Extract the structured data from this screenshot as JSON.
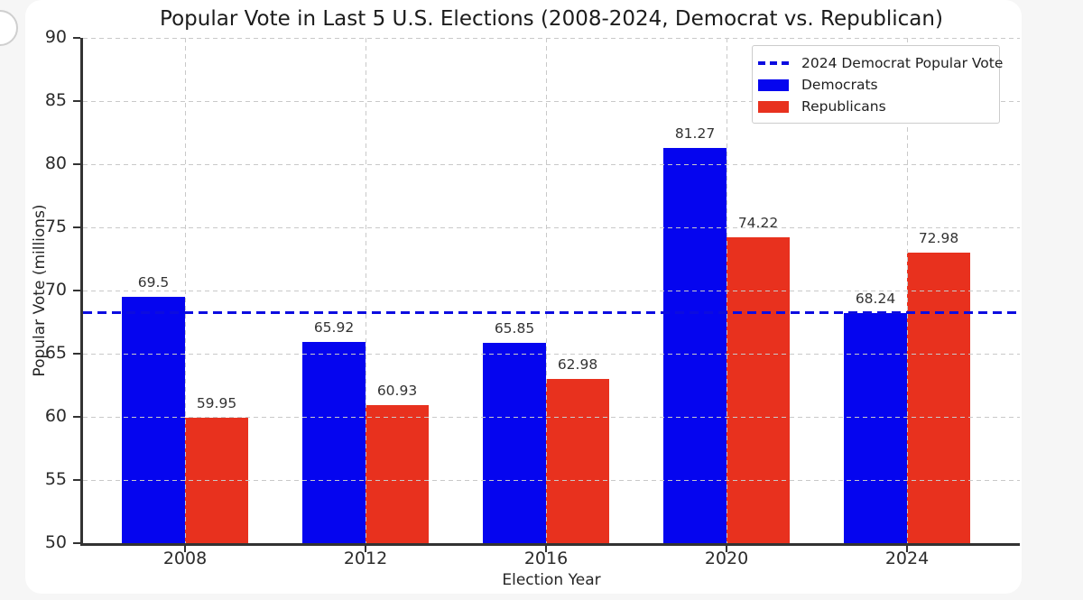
{
  "page": {
    "page_bg": "#f6f6f6",
    "card_bg": "#ffffff"
  },
  "chart_data": {
    "type": "bar",
    "title": "Popular Vote in Last 5 U.S. Elections (2008-2024, Democrat vs. Republican)",
    "xlabel": "Election Year",
    "ylabel": "Popular Vote (millions)",
    "categories": [
      "2008",
      "2012",
      "2016",
      "2020",
      "2024"
    ],
    "series": [
      {
        "name": "Democrats",
        "color": "#0505ef",
        "values": [
          69.5,
          65.92,
          65.85,
          81.27,
          68.24
        ]
      },
      {
        "name": "Republicans",
        "color": "#e8311e",
        "values": [
          59.95,
          60.93,
          62.98,
          74.22,
          72.98
        ]
      }
    ],
    "reference_line": {
      "label": "2024 Democrat Popular Vote",
      "value": 68.24,
      "color": "#0c0ce0",
      "style": "dashed"
    },
    "ylim": [
      50,
      90
    ],
    "ytick_step": 5,
    "grid": true,
    "grid_style": "dashed",
    "legend_position": "upper right"
  }
}
